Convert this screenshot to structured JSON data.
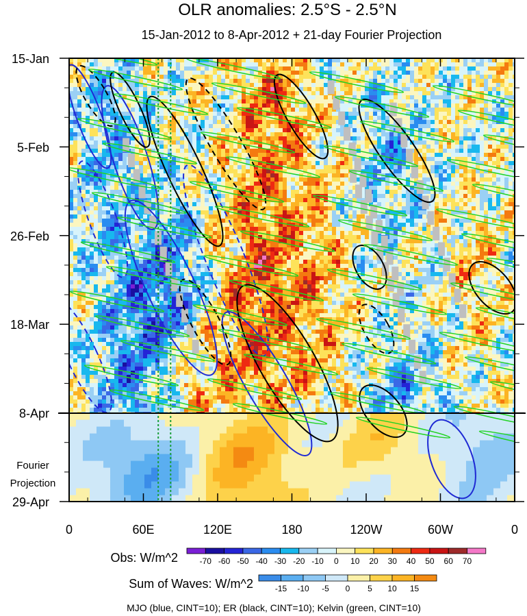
{
  "chart_data": {
    "type": "heatmap",
    "title": "OLR anomalies: 2.5°S - 2.5°N",
    "subtitle": "15-Jan-2012 to 8-Apr-2012 + 21-day Fourier Projection",
    "x_ticks": [
      "0",
      "60E",
      "120E",
      "180",
      "120W",
      "60W",
      "0"
    ],
    "x_tick_degrees": [
      0,
      60,
      120,
      180,
      240,
      300,
      360
    ],
    "xlim": [
      0,
      360
    ],
    "y_ticks": [
      "15-Jan",
      "5-Feb",
      "26-Feb",
      "18-Mar",
      "8-Apr",
      "29-Apr"
    ],
    "y_tick_days": [
      0,
      21,
      42,
      63,
      84,
      105
    ],
    "ylim": [
      0,
      105
    ],
    "projection_start_day": 84,
    "projection_label": [
      "Fourier",
      "Projection"
    ],
    "obs_colorbar": {
      "label": "Obs: W/m^2",
      "levels": [
        "-70",
        "-60",
        "-50",
        "-40",
        "-30",
        "-20",
        "-10",
        "0",
        "10",
        "20",
        "30",
        "40",
        "50",
        "60",
        "70"
      ],
      "colors": [
        "#7a1fd6",
        "#1a0fa0",
        "#2424d6",
        "#3a68e6",
        "#2a8cf0",
        "#18b8ee",
        "#9ad0f5",
        "#d8f4fb",
        "#fbf6c0",
        "#fde25a",
        "#fcb424",
        "#f47a10",
        "#ee2a12",
        "#c91414",
        "#9e2a2a",
        "#f578c8"
      ]
    },
    "waves_colorbar": {
      "label": "Sum of Waves: W/m^2",
      "levels": [
        "-15",
        "-10",
        "-5",
        "0",
        "5",
        "10",
        "15"
      ],
      "colors": [
        "#3a8ce8",
        "#5aaef0",
        "#8ec8f4",
        "#cfe8f8",
        "#fbf0a8",
        "#fdd24a",
        "#fcb424",
        "#f48a12"
      ]
    },
    "footer": "MJO (blue, CINT=10); ER (black, CINT=10); Kelvin (green, CINT=10)",
    "series": [
      {
        "name": "MJO",
        "color": "#1f2ad4"
      },
      {
        "name": "ER",
        "color": "#000000"
      },
      {
        "name": "Kelvin",
        "color": "#22d322"
      }
    ],
    "reference_longitudes": [
      72,
      82
    ],
    "grid": false
  }
}
